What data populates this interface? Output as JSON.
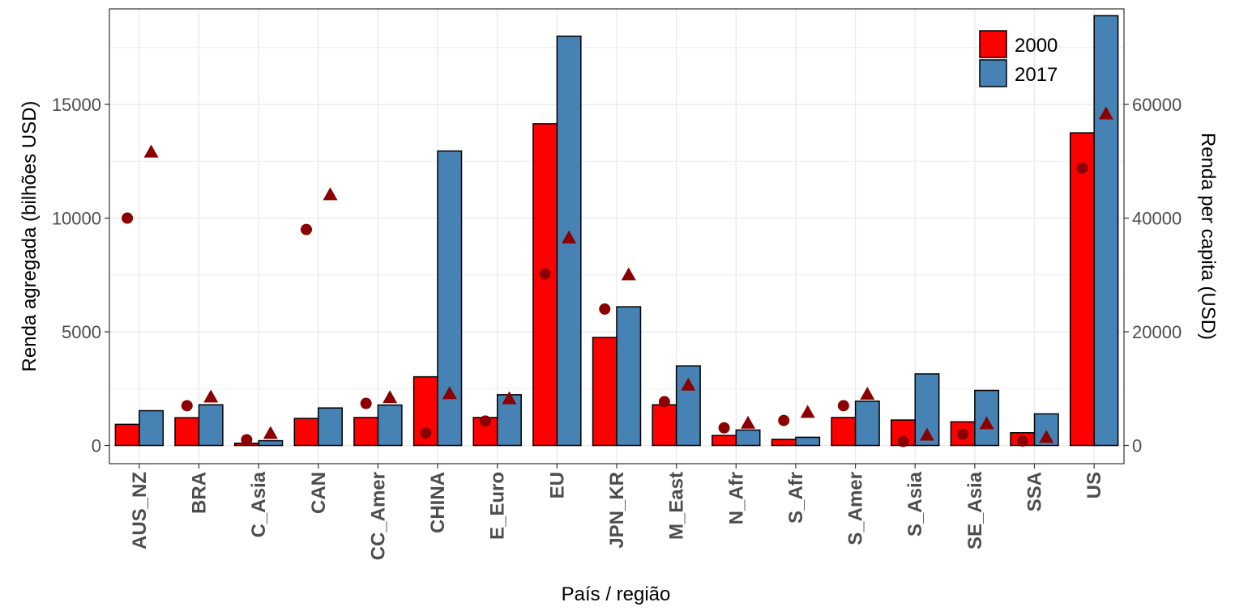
{
  "chart_data": {
    "type": "bar",
    "xlabel": "País / região",
    "ylabel": "Renda agregada (bilhões USD)",
    "y2label": "Renda per capita (USD)",
    "ylim": [
      -800,
      19200
    ],
    "y2lim": [
      -3200,
      76800
    ],
    "yticks": [
      "0",
      "5000",
      "10000",
      "15000"
    ],
    "y2ticks": [
      "0",
      "20000",
      "40000",
      "60000"
    ],
    "ytick_values": [
      0,
      5000,
      10000,
      15000
    ],
    "y2tick_values": [
      0,
      20000,
      40000,
      60000
    ],
    "grid": true,
    "legend_position": "top-right",
    "categories": [
      "AUS_NZ",
      "BRA",
      "C_Asia",
      "CAN",
      "CC_Amer",
      "CHINA",
      "E_Euro",
      "EU",
      "JPN_KR",
      "M_East",
      "N_Afr",
      "S_Afr",
      "S_Amer",
      "S_Asia",
      "SE_Asia",
      "SSA",
      "US"
    ],
    "series": [
      {
        "name": "2000",
        "color": "#ff0000",
        "values": [
          930,
          1220,
          100,
          1190,
          1230,
          3020,
          1230,
          14150,
          4750,
          1790,
          440,
          270,
          1230,
          1120,
          1040,
          560,
          13750
        ]
      },
      {
        "name": "2017",
        "color": "#4682b4",
        "values": [
          1530,
          1790,
          210,
          1650,
          1780,
          12950,
          2230,
          18000,
          6100,
          3500,
          680,
          360,
          1950,
          3150,
          2420,
          1390,
          18900
        ]
      }
    ],
    "per_capita_series": [
      {
        "year": "2000",
        "marker": "circle",
        "color": "#8b0000",
        "values": [
          40000,
          7000,
          1000,
          38000,
          7400,
          2200,
          4300,
          30200,
          24000,
          7700,
          3100,
          4400,
          7000,
          700,
          2000,
          800,
          48800
        ]
      },
      {
        "year": "2017",
        "marker": "triangle",
        "color": "#8b0000",
        "values": [
          51800,
          8700,
          2300,
          44300,
          8600,
          9300,
          8400,
          36700,
          30200,
          10800,
          4100,
          6000,
          9200,
          2000,
          4000,
          1600,
          58500
        ]
      }
    ]
  }
}
